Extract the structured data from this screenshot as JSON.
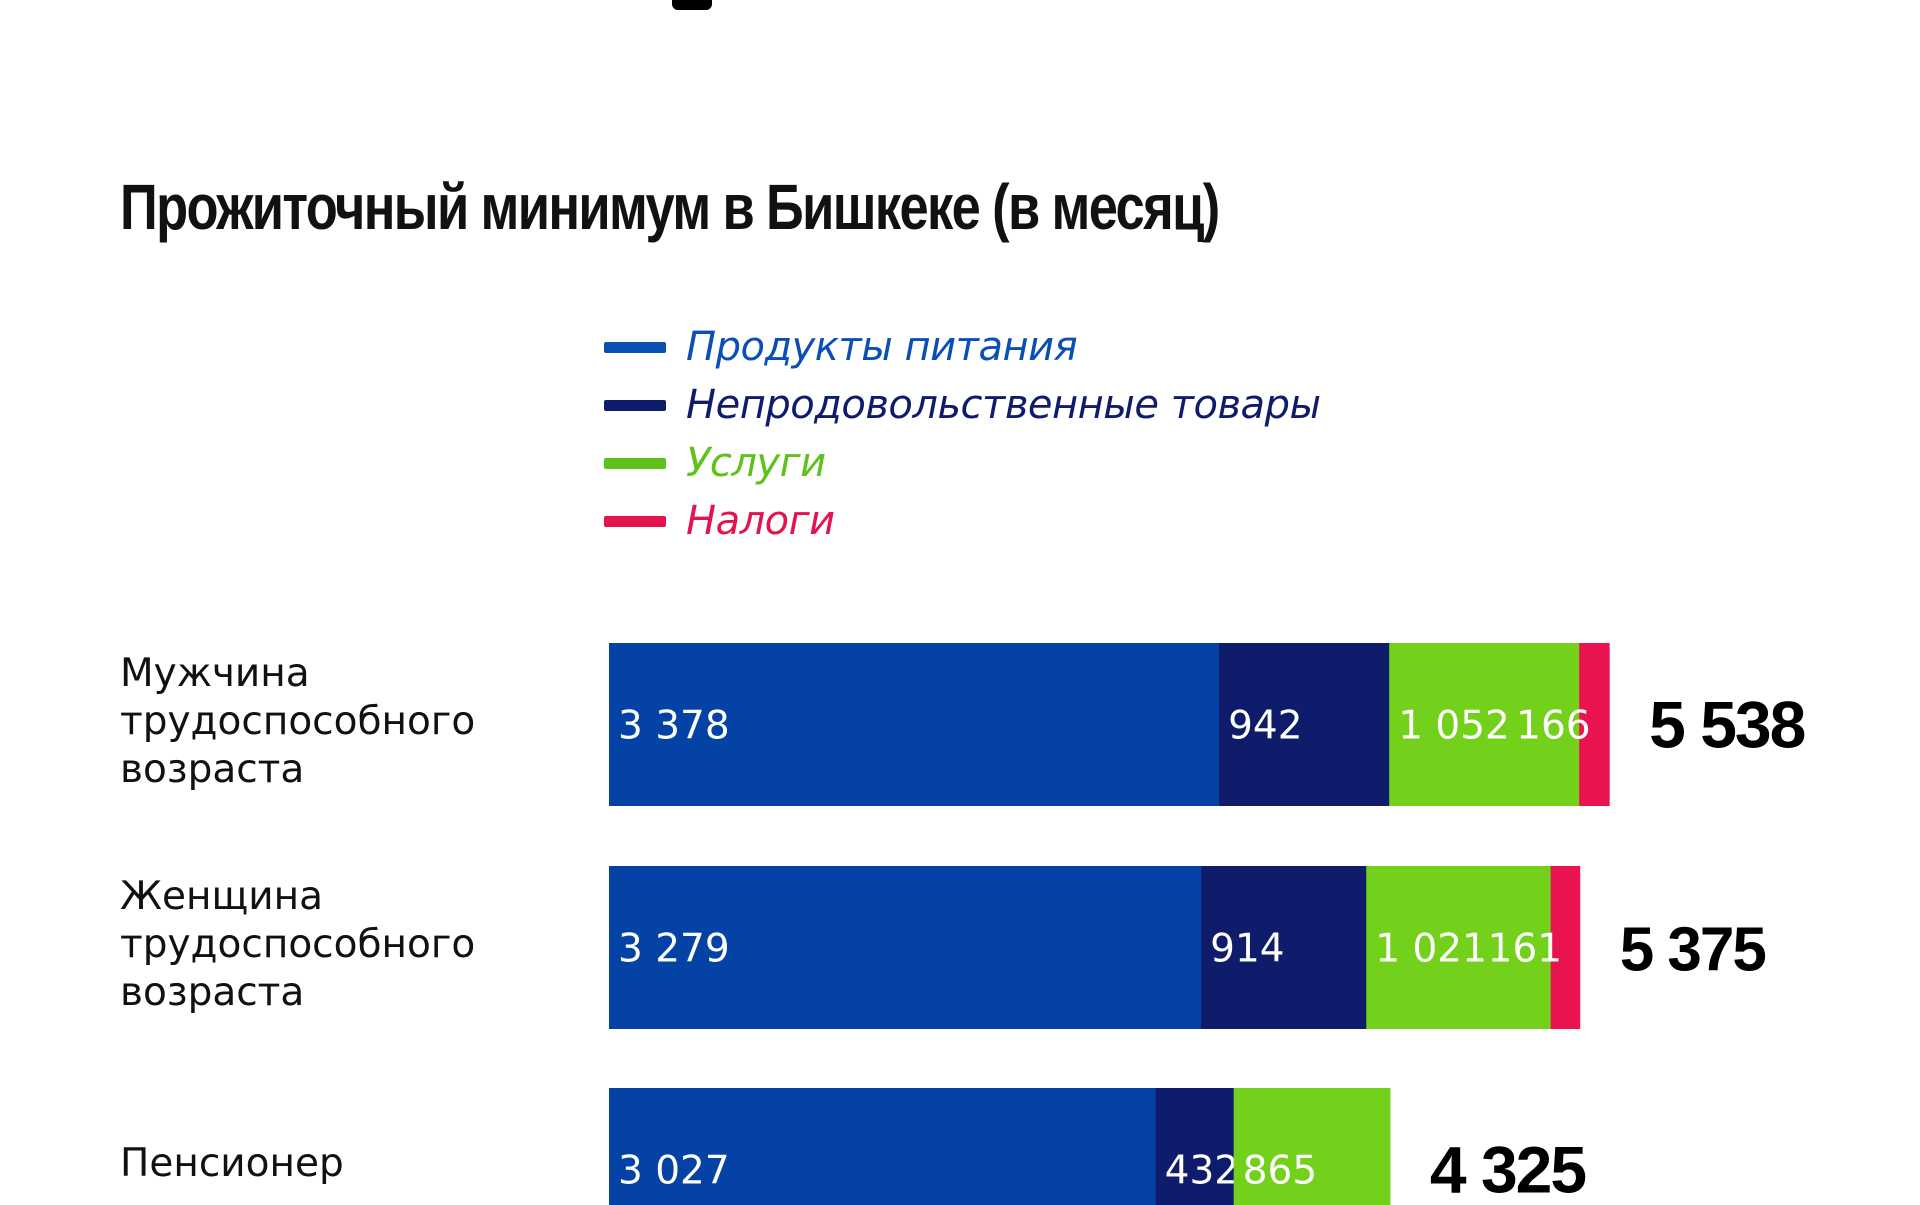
{
  "chart_data": {
    "type": "bar",
    "orientation": "horizontal",
    "stacked": true,
    "title": "Прожиточный минимум в Бишкеке (в месяц)",
    "legend_position": "top",
    "categories": [
      [
        "Мужчина",
        "трудоспособного",
        "возраста"
      ],
      [
        "Женщина",
        "трудоспособного",
        "возраста"
      ],
      [
        "Пенсионер"
      ]
    ],
    "series": [
      {
        "name": "Продукты питания",
        "color": "#0442a6",
        "values": [
          3378,
          3279,
          3027
        ],
        "labels": [
          "3 378",
          "3 279",
          "3 027"
        ]
      },
      {
        "name": "Непродовольственные товары",
        "color": "#0f1b6b",
        "values": [
          942,
          914,
          432
        ],
        "labels": [
          "942",
          "914",
          "432"
        ]
      },
      {
        "name": "Услуги",
        "color": "#74d11b",
        "values": [
          1052,
          1021,
          865
        ],
        "labels": [
          "1 052",
          "1 021",
          "865"
        ]
      },
      {
        "name": "Налоги",
        "color": "#e8134f",
        "values": [
          166,
          161,
          0
        ],
        "labels": [
          "166",
          "161",
          ""
        ]
      }
    ],
    "totals": [
      "5 538",
      "5 375",
      "4 325"
    ],
    "legend_colors": [
      "#0a4fb3",
      "#0f1b6b",
      "#5fc21a",
      "#e3134e"
    ]
  }
}
